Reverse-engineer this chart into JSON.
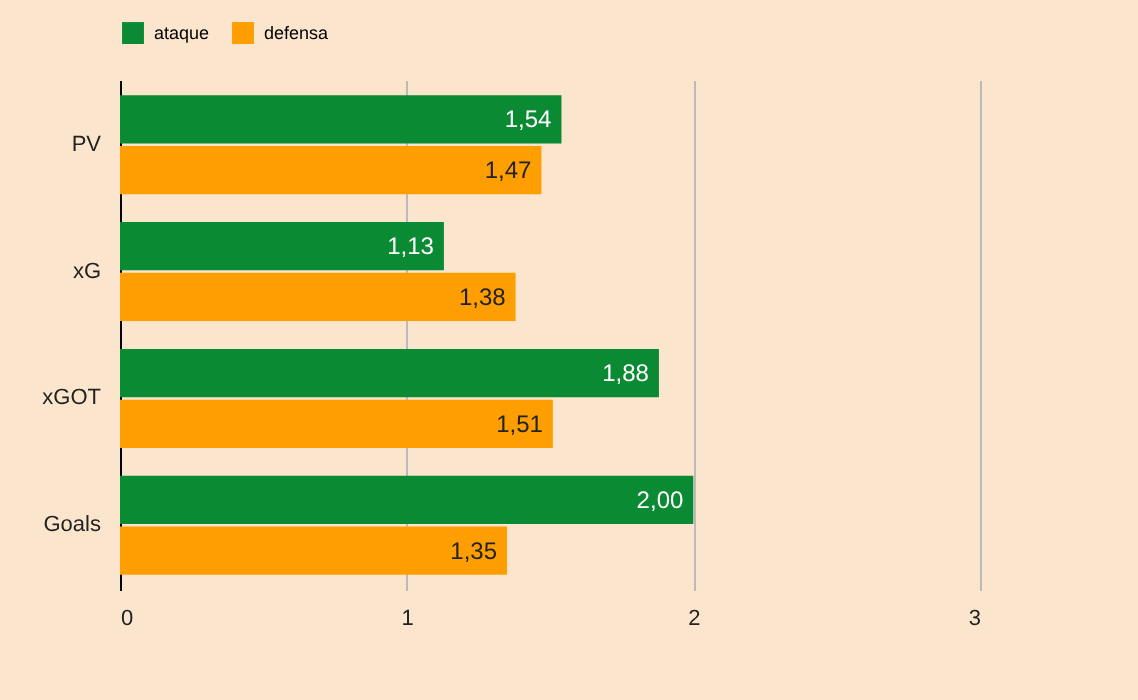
{
  "chart_data": {
    "type": "bar",
    "orientation": "horizontal",
    "categories": [
      "PV",
      "xG",
      "xGOT",
      "Goals"
    ],
    "series": [
      {
        "name": "ataque",
        "color": "#0b8a34",
        "values": [
          1.54,
          1.13,
          1.88,
          2.0
        ],
        "value_labels": [
          "1,54",
          "1,13",
          "1,88",
          "2,00"
        ]
      },
      {
        "name": "defensa",
        "color": "#ff9e00",
        "values": [
          1.47,
          1.38,
          1.51,
          1.35
        ],
        "value_labels": [
          "1,47",
          "1,38",
          "1,51",
          "1,35"
        ]
      }
    ],
    "xlim": [
      0,
      3
    ],
    "xticks": [
      0,
      1,
      2,
      3
    ],
    "grid": "x",
    "legend": "top"
  }
}
